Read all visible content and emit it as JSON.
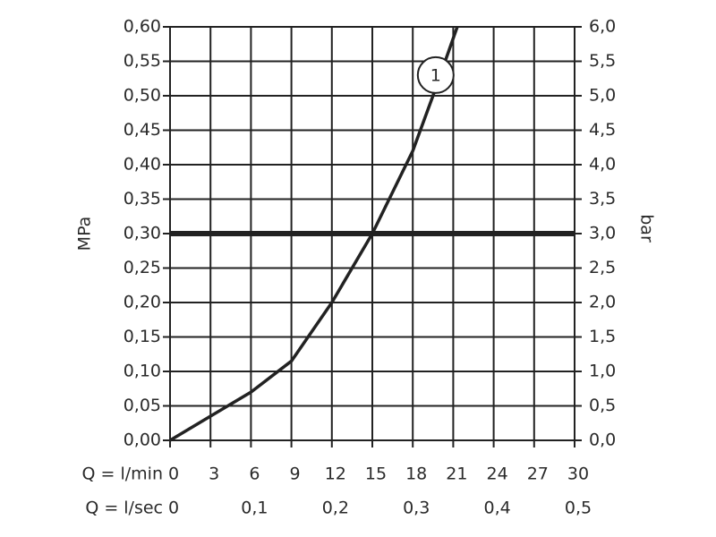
{
  "chart_data": {
    "type": "line",
    "xlabel": "Q = l/min",
    "x2label": "Q = l/sec",
    "ylabel": "MPa",
    "y2label": "bar",
    "x": [
      0,
      3,
      6,
      9,
      12,
      15,
      18,
      19.5,
      21.3
    ],
    "series": [
      {
        "color": "#222222",
        "values": [
          0,
          0.035,
          0.07,
          0.115,
          0.2,
          0.3,
          0.42,
          0.5,
          0.6
        ]
      }
    ],
    "xlim": [
      0,
      30
    ],
    "xticks": [
      0,
      3,
      6,
      9,
      12,
      15,
      18,
      21,
      24,
      27,
      30
    ],
    "x2lim": [
      0,
      0.5
    ],
    "x2ticks": [
      0,
      {
        "value": 0.1,
        "label": "0,1"
      },
      {
        "value": 0.2,
        "label": "0,2"
      },
      {
        "value": 0.3,
        "label": "0,3"
      },
      {
        "value": 0.4,
        "label": "0,4"
      },
      {
        "value": 0.5,
        "label": "0,5"
      }
    ],
    "ylim": [
      0,
      0.6
    ],
    "yticks": [
      {
        "value": 0,
        "label": "0,00"
      },
      {
        "value": 0.05,
        "label": "0,05"
      },
      {
        "value": 0.1,
        "label": "0,10"
      },
      {
        "value": 0.15,
        "label": "0,15"
      },
      {
        "value": 0.2,
        "label": "0,20"
      },
      {
        "value": 0.25,
        "label": "0,25"
      },
      {
        "value": 0.3,
        "label": "0,30"
      },
      {
        "value": 0.35,
        "label": "0,35"
      },
      {
        "value": 0.4,
        "label": "0,40"
      },
      {
        "value": 0.45,
        "label": "0,45"
      },
      {
        "value": 0.5,
        "label": "0,50"
      },
      {
        "value": 0.55,
        "label": "0,55"
      },
      {
        "value": 0.6,
        "label": "0,60"
      }
    ],
    "y2lim": [
      0,
      6
    ],
    "y2ticks": [
      {
        "value": 0,
        "label": "0,0"
      },
      {
        "value": 0.5,
        "label": "0,5"
      },
      {
        "value": 1,
        "label": "1,0"
      },
      {
        "value": 1.5,
        "label": "1,5"
      },
      {
        "value": 2,
        "label": "2,0"
      },
      {
        "value": 2.5,
        "label": "2,5"
      },
      {
        "value": 3,
        "label": "3,0"
      },
      {
        "value": 3.5,
        "label": "3,5"
      },
      {
        "value": 4,
        "label": "4,0"
      },
      {
        "value": 4.5,
        "label": "4,5"
      },
      {
        "value": 5,
        "label": "5,0"
      },
      {
        "value": 5.5,
        "label": "5,5"
      },
      {
        "value": 6,
        "label": "6,0"
      }
    ],
    "grid": true,
    "reference_line": {
      "y": 0.3
    },
    "drop_line": {
      "x": 15,
      "y": 0.3
    },
    "annotation": {
      "text": "1",
      "x": 19.7,
      "y": 0.53
    }
  }
}
